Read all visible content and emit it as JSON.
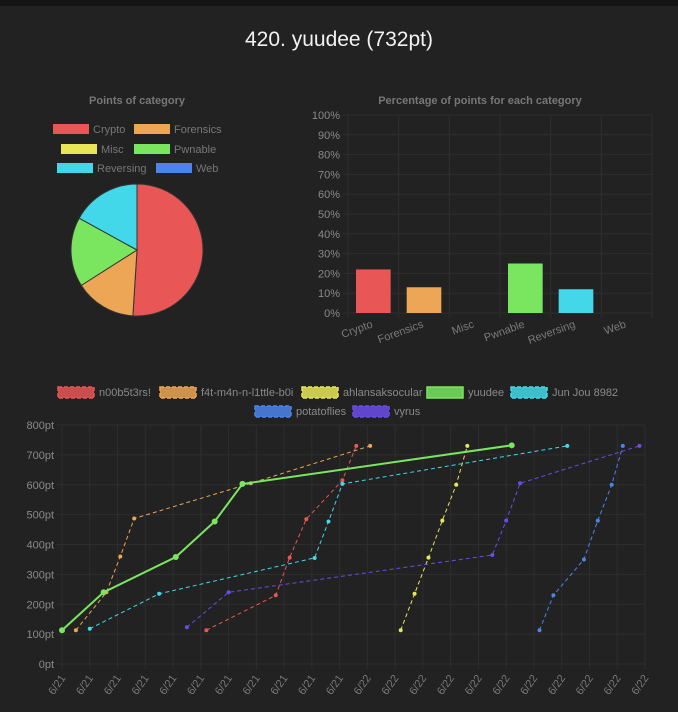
{
  "page": {
    "title": "420. yuudee (732pt)"
  },
  "chart_data": [
    {
      "type": "pie",
      "title": "Points of category",
      "categories": [
        "Crypto",
        "Forensics",
        "Misc",
        "Pwnable",
        "Reversing",
        "Web"
      ],
      "values": [
        51,
        15,
        0,
        17,
        17,
        0
      ],
      "colors": [
        "#e85656",
        "#eca655",
        "#e7e658",
        "#7ae65f",
        "#43d8e9",
        "#4b84ea"
      ]
    },
    {
      "type": "bar",
      "title": "Percentage of points for each category",
      "categories": [
        "Crypto",
        "Forensics",
        "Misc",
        "Pwnable",
        "Reversing",
        "Web"
      ],
      "values": [
        22,
        13,
        0,
        25,
        12,
        0
      ],
      "colors": [
        "#e85656",
        "#eca655",
        "#e7e658",
        "#7ae65f",
        "#43d8e9",
        "#4b84ea"
      ],
      "ylim": [
        0,
        100
      ],
      "yticks": [
        "0%",
        "10%",
        "20%",
        "30%",
        "40%",
        "50%",
        "60%",
        "70%",
        "80%",
        "90%",
        "100%"
      ]
    },
    {
      "type": "line",
      "title": "",
      "ylim": [
        0,
        800
      ],
      "yticks": [
        "0pt",
        "100pt",
        "200pt",
        "300pt",
        "400pt",
        "500pt",
        "600pt",
        "700pt",
        "800pt"
      ],
      "xticks": [
        "6/21",
        "6/21",
        "6/21",
        "6/21",
        "6/21",
        "6/21",
        "6/21",
        "6/21",
        "6/21",
        "6/21",
        "6/21",
        "6/22",
        "6/22",
        "6/22",
        "6/22",
        "6/22",
        "6/22",
        "6/22",
        "6/22",
        "6/22",
        "6/22",
        "6/22"
      ],
      "series": [
        {
          "name": "n00b5t3rs!",
          "color": "#e85656",
          "dashed": true,
          "points": [
            [
              5.2,
              113
            ],
            [
              7.7,
              230
            ],
            [
              8.2,
              356
            ],
            [
              8.8,
              485
            ],
            [
              10.1,
              615
            ],
            [
              10.6,
              730
            ]
          ]
        },
        {
          "name": "f4t-m4n-n-l1ttle-b0i",
          "color": "#eca655",
          "dashed": true,
          "points": [
            [
              0.5,
              113
            ],
            [
              1.6,
              240
            ],
            [
              2.1,
              360
            ],
            [
              2.6,
              487
            ],
            [
              6.8,
              605
            ],
            [
              11.1,
              730
            ]
          ]
        },
        {
          "name": "ahlansaksocular",
          "color": "#e7e658",
          "dashed": true,
          "points": [
            [
              12.2,
              113
            ],
            [
              12.7,
              235
            ],
            [
              13.2,
              356
            ],
            [
              13.7,
              480
            ],
            [
              14.2,
              600
            ],
            [
              14.6,
              730
            ]
          ]
        },
        {
          "name": "yuudee",
          "color": "#7ae65f",
          "dashed": false,
          "points": [
            [
              0,
              113
            ],
            [
              1.5,
              240
            ],
            [
              4.1,
              358
            ],
            [
              5.5,
              477
            ],
            [
              6.5,
              603
            ],
            [
              16.2,
              732
            ]
          ]
        },
        {
          "name": "Jun Jou 8982",
          "color": "#43d8e9",
          "dashed": true,
          "points": [
            [
              1.0,
              118
            ],
            [
              3.5,
              235
            ],
            [
              9.1,
              355
            ],
            [
              9.6,
              477
            ],
            [
              10.1,
              603
            ],
            [
              18.2,
              730
            ]
          ]
        },
        {
          "name": "potatoflies",
          "color": "#4b84ea",
          "dashed": true,
          "points": [
            [
              17.2,
              113
            ],
            [
              17.7,
              230
            ],
            [
              18.8,
              350
            ],
            [
              19.3,
              480
            ],
            [
              19.8,
              600
            ],
            [
              20.2,
              730
            ]
          ]
        },
        {
          "name": "vyrus",
          "color": "#6a4ce9",
          "dashed": true,
          "points": [
            [
              4.5,
              123
            ],
            [
              6.0,
              240
            ],
            [
              15.5,
              365
            ],
            [
              16.0,
              480
            ],
            [
              16.5,
              605
            ],
            [
              20.8,
              730
            ]
          ]
        }
      ]
    }
  ]
}
